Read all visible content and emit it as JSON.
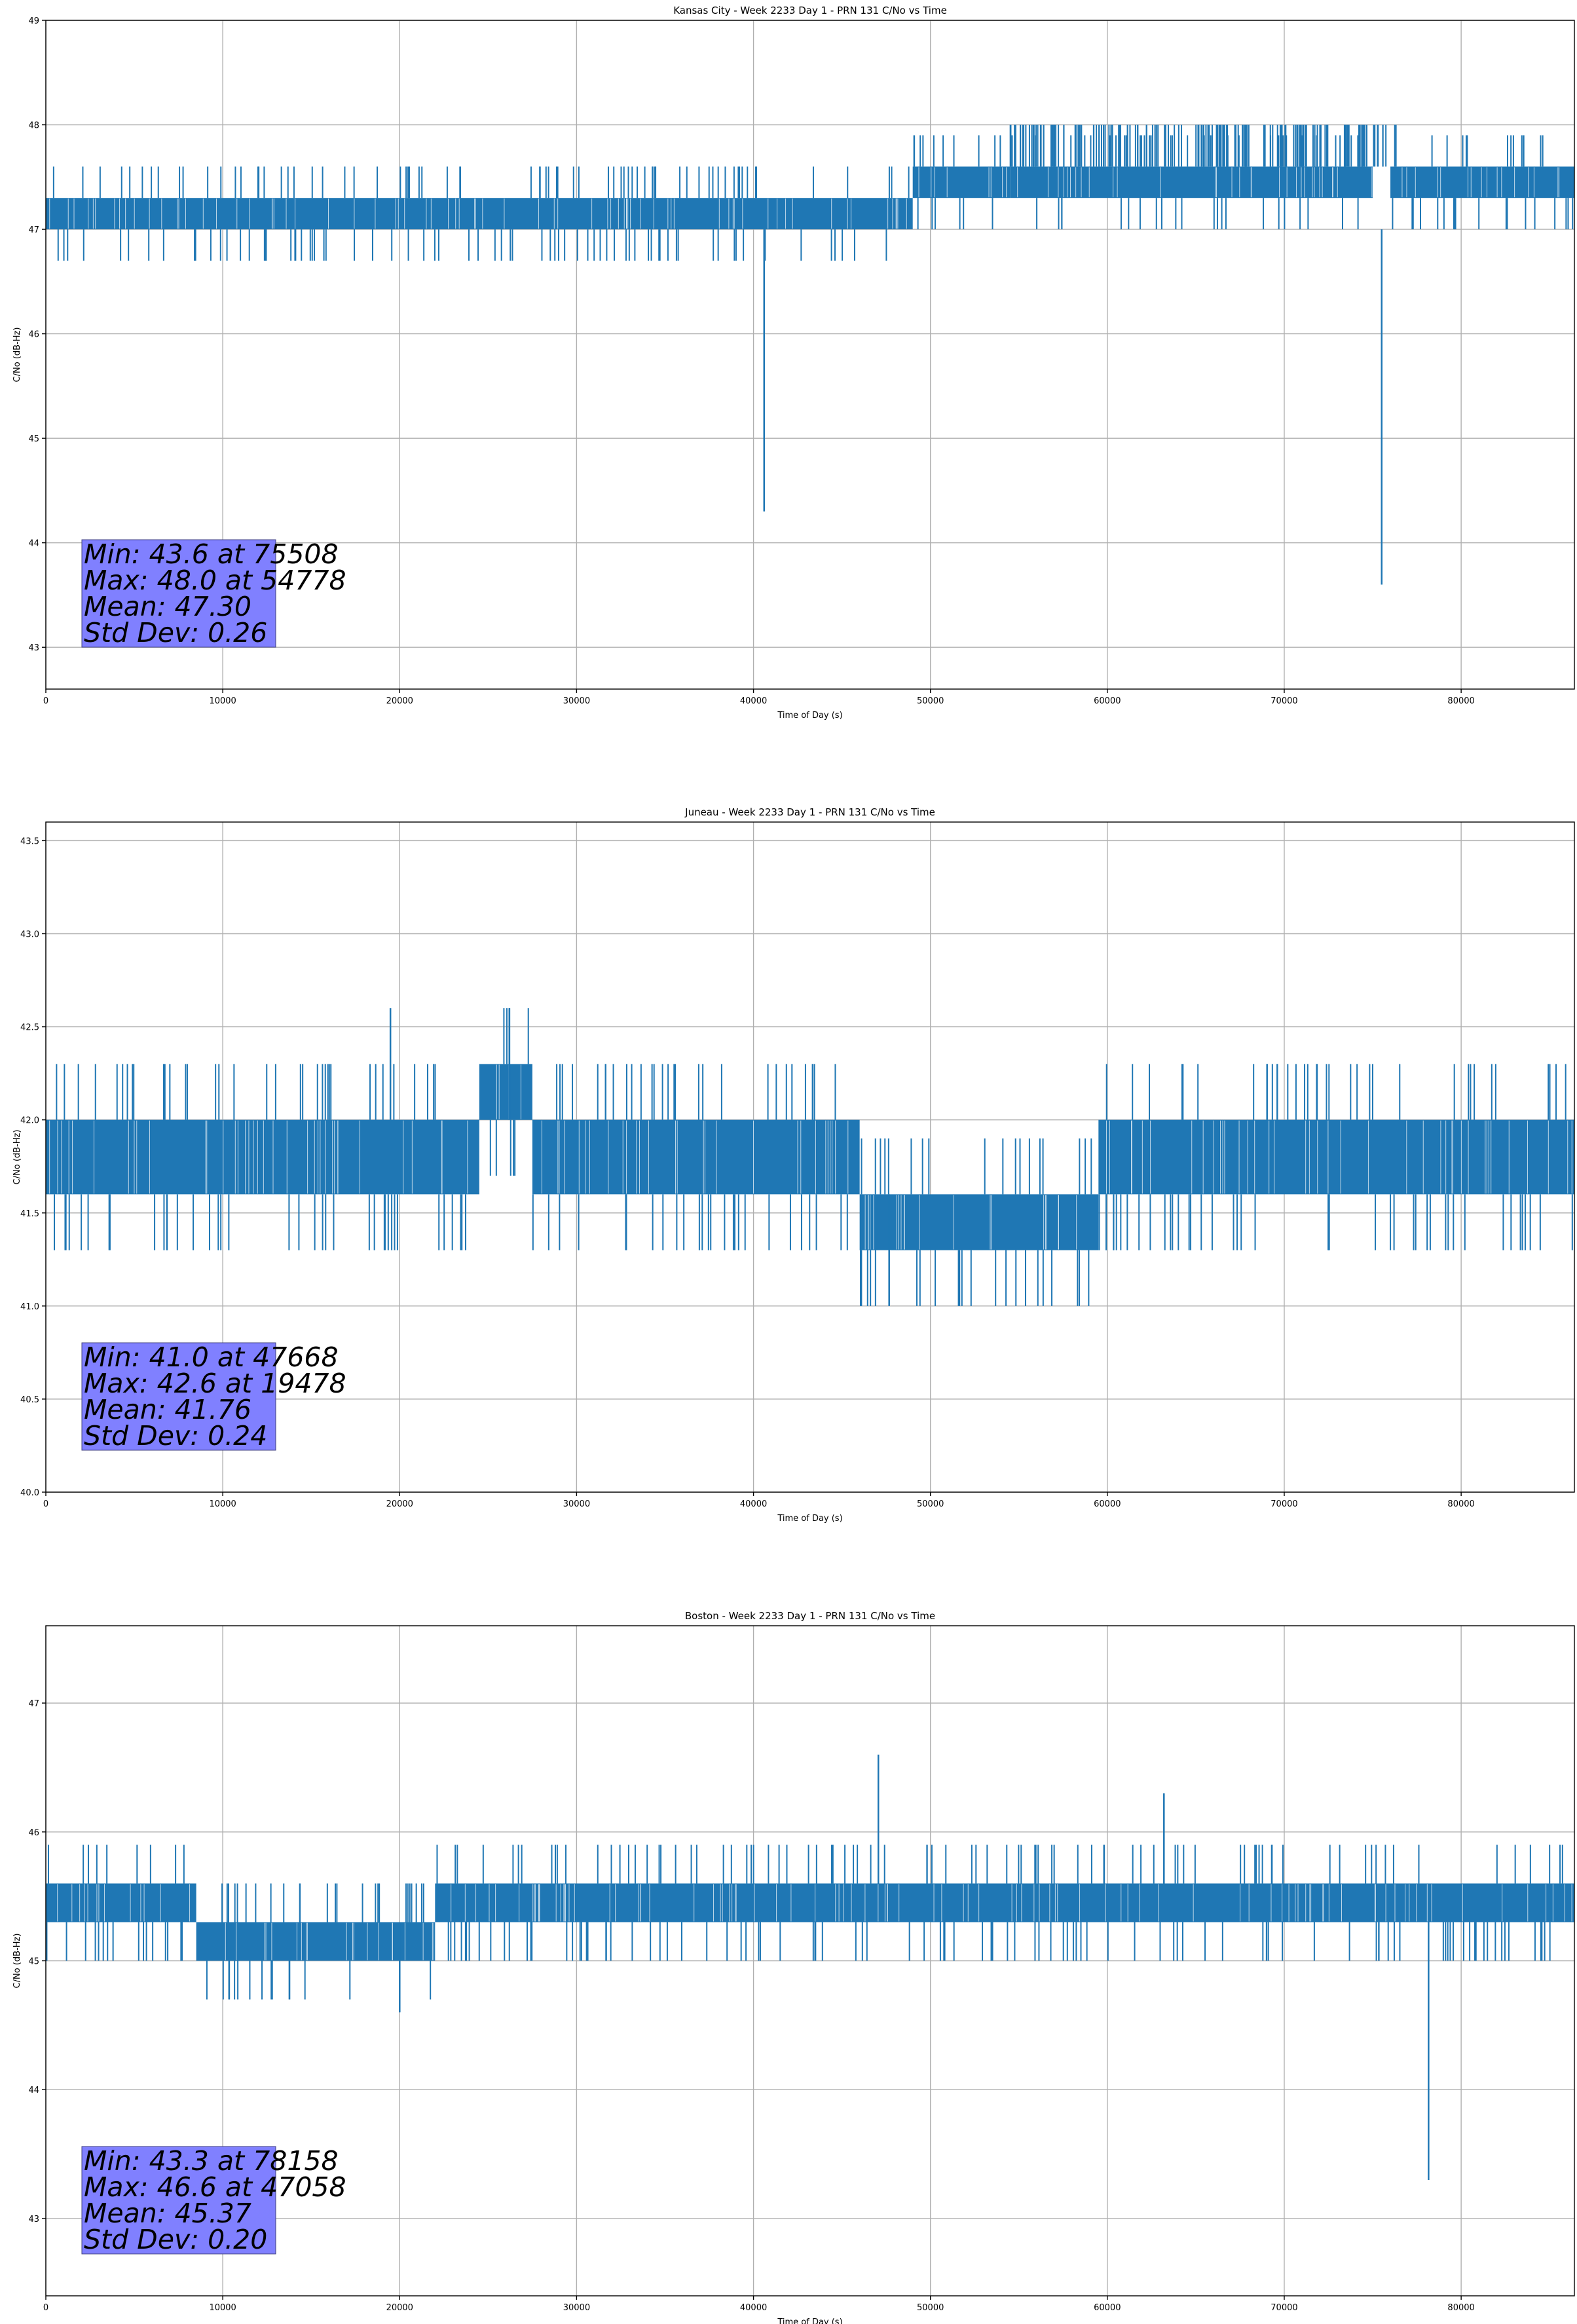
{
  "chart_data": [
    {
      "type": "line",
      "title": "Kansas City - Week 2233 Day 1 - PRN 131 C/No vs Time",
      "xlabel": "Time of Day (s)",
      "ylabel": "C/No (dB-Hz)",
      "xlim": [
        0,
        86400
      ],
      "ylim": [
        42.6,
        49.0
      ],
      "xticks": [
        0,
        10000,
        20000,
        30000,
        40000,
        50000,
        60000,
        70000,
        80000
      ],
      "yticks": [
        43,
        44,
        45,
        46,
        47,
        48,
        49
      ],
      "ytick_labels": [
        "43",
        "44",
        "45",
        "46",
        "47",
        "48",
        "49"
      ],
      "grid": true,
      "color": "#1f77b4",
      "stats_box": [
        "Min: 43.6 at 75508",
        "Max: 48.0 at 54778",
        "Mean: 47.30",
        "Std Dev: 0.26"
      ],
      "band_segments": [
        {
          "x": [
            0,
            49000
          ],
          "low": 47.0,
          "high": 47.3
        },
        {
          "x": [
            49000,
            54500
          ],
          "low": 47.3,
          "high": 47.6
        },
        {
          "x": [
            54500,
            75000
          ],
          "low": 47.3,
          "high": 47.6
        },
        {
          "x": [
            76000,
            86400
          ],
          "low": 47.3,
          "high": 47.6
        }
      ],
      "upper_spikes_region": {
        "x": [
          54500,
          77000
        ],
        "value": 48.0
      },
      "dips": [
        {
          "x": 40600,
          "value": 44.3
        },
        {
          "x": 75508,
          "value": 43.6
        }
      ]
    },
    {
      "type": "line",
      "title": "Juneau - Week 2233 Day 1 - PRN 131 C/No vs Time",
      "xlabel": "Time of Day (s)",
      "ylabel": "C/No (dB-Hz)",
      "xlim": [
        0,
        86400
      ],
      "ylim": [
        40.0,
        43.6
      ],
      "xticks": [
        0,
        10000,
        20000,
        30000,
        40000,
        50000,
        60000,
        70000,
        80000
      ],
      "yticks": [
        40.0,
        40.5,
        41.0,
        41.5,
        42.0,
        42.5,
        43.0,
        43.5
      ],
      "ytick_labels": [
        "40.0",
        "40.5",
        "41.0",
        "41.5",
        "42.0",
        "42.5",
        "43.0",
        "43.5"
      ],
      "grid": true,
      "color": "#1f77b4",
      "stats_box": [
        "Min: 41.0 at 47668",
        "Max: 42.6 at 19478",
        "Mean: 41.76",
        "Std Dev: 0.24"
      ],
      "band_segments": [
        {
          "x": [
            0,
            24500
          ],
          "low": 41.6,
          "high": 42.0
        },
        {
          "x": [
            24500,
            27500
          ],
          "low": 42.0,
          "high": 42.3
        },
        {
          "x": [
            27500,
            46000
          ],
          "low": 41.6,
          "high": 42.0
        },
        {
          "x": [
            46000,
            59500
          ],
          "low": 41.3,
          "high": 41.6
        },
        {
          "x": [
            59500,
            86400
          ],
          "low": 41.6,
          "high": 42.0
        }
      ],
      "dips": [
        {
          "x": 47668,
          "value": 41.0
        }
      ],
      "peaks": [
        {
          "x": 19478,
          "value": 42.6
        },
        {
          "x": 26200,
          "value": 42.6
        }
      ]
    },
    {
      "type": "line",
      "title": "Boston - Week 2233 Day 1 - PRN 131 C/No vs Time",
      "xlabel": "Time of Day (s)",
      "ylabel": "C/No (dB-Hz)",
      "xlim": [
        0,
        86400
      ],
      "ylim": [
        42.4,
        47.6
      ],
      "xticks": [
        0,
        10000,
        20000,
        30000,
        40000,
        50000,
        60000,
        70000,
        80000
      ],
      "yticks": [
        43,
        44,
        45,
        46,
        47
      ],
      "ytick_labels": [
        "43",
        "44",
        "45",
        "46",
        "47"
      ],
      "grid": true,
      "color": "#1f77b4",
      "stats_box": [
        "Min: 43.3 at 78158",
        "Max: 46.6 at 47058",
        "Mean: 45.37",
        "Std Dev: 0.20"
      ],
      "band_segments": [
        {
          "x": [
            0,
            8500
          ],
          "low": 45.3,
          "high": 45.6
        },
        {
          "x": [
            8500,
            22000
          ],
          "low": 45.0,
          "high": 45.3
        },
        {
          "x": [
            22000,
            86400
          ],
          "low": 45.3,
          "high": 45.6
        }
      ],
      "dips": [
        {
          "x": 20000,
          "value": 44.6
        },
        {
          "x": 78158,
          "value": 43.3
        }
      ],
      "peaks": [
        {
          "x": 47058,
          "value": 46.6
        },
        {
          "x": 63200,
          "value": 46.3
        }
      ]
    }
  ]
}
